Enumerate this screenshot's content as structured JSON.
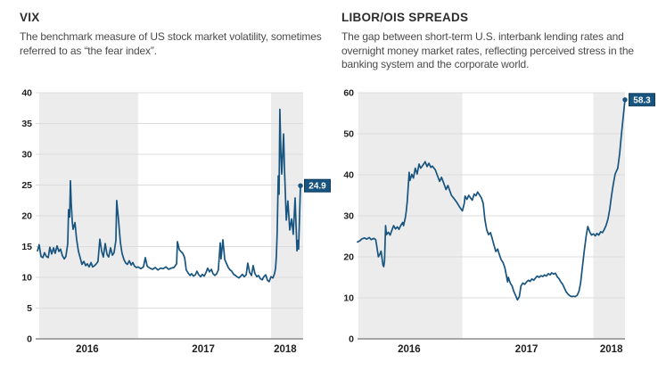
{
  "colors": {
    "line": "#17547F",
    "label_bg": "#17547F",
    "label_border": "#0E3C5C",
    "label_text": "#FFFFFF",
    "band": "#ECECEC",
    "grid": "#DCDCDC",
    "axis": "#8C8C8C",
    "title": "#2D2D2D",
    "description": "#4A4A4A",
    "tick": "#1F1F1F"
  },
  "chart_data": [
    {
      "type": "line",
      "title": "VIX",
      "subtitle": "The benchmark measure of US stock market volatility, sometimes referred to as “the fear index”.",
      "ylim": [
        0,
        40
      ],
      "yticks": [
        0,
        5,
        10,
        15,
        20,
        25,
        30,
        35,
        40
      ],
      "xticks": [
        {
          "label": "2016",
          "pct": 19.3
        },
        {
          "label": "2017",
          "pct": 62.7
        },
        {
          "label": "2018",
          "pct": 93.3
        }
      ],
      "grid": true,
      "legend_position": "none",
      "shaded_bands_pct": [
        [
          1.3,
          38.3
        ],
        [
          88,
          100
        ]
      ],
      "end_label": "24.9",
      "end_value": 24.9,
      "points": [
        [
          0.7,
          14.3
        ],
        [
          1.3,
          15.3
        ],
        [
          2,
          13.4
        ],
        [
          2.7,
          13.2
        ],
        [
          3.3,
          14
        ],
        [
          4,
          13.4
        ],
        [
          4.7,
          13.2
        ],
        [
          5.3,
          14.9
        ],
        [
          6,
          13.8
        ],
        [
          6.7,
          14.8
        ],
        [
          7.3,
          13.9
        ],
        [
          8,
          15.1
        ],
        [
          8.7,
          14.2
        ],
        [
          9.3,
          14.6
        ],
        [
          10,
          13.5
        ],
        [
          10.7,
          13
        ],
        [
          11.3,
          13.4
        ],
        [
          12,
          15.5
        ],
        [
          12.3,
          21
        ],
        [
          12.7,
          19.8
        ],
        [
          13,
          25.7
        ],
        [
          13.3,
          22
        ],
        [
          13.7,
          19
        ],
        [
          14,
          17.8
        ],
        [
          14.7,
          18.9
        ],
        [
          15.3,
          16.2
        ],
        [
          16,
          14.2
        ],
        [
          16.7,
          13.1
        ],
        [
          17.3,
          12.1
        ],
        [
          18,
          12.6
        ],
        [
          18.7,
          11.9
        ],
        [
          19.3,
          12.2
        ],
        [
          20,
          11.7
        ],
        [
          20.7,
          12.4
        ],
        [
          21.3,
          11.7
        ],
        [
          22,
          11.9
        ],
        [
          22.7,
          12.2
        ],
        [
          23.3,
          12.6
        ],
        [
          24,
          16.2
        ],
        [
          24.7,
          14.2
        ],
        [
          25.3,
          13.3
        ],
        [
          26,
          15.5
        ],
        [
          26.7,
          13.7
        ],
        [
          27.3,
          13.3
        ],
        [
          28,
          14.8
        ],
        [
          28.7,
          13.6
        ],
        [
          29.3,
          14
        ],
        [
          30,
          16
        ],
        [
          30.3,
          22.5
        ],
        [
          31,
          19.2
        ],
        [
          31.7,
          15.6
        ],
        [
          32.3,
          13.9
        ],
        [
          33,
          12.9
        ],
        [
          33.7,
          12.3
        ],
        [
          34.3,
          12.1
        ],
        [
          35,
          12.7
        ],
        [
          35.7,
          12
        ],
        [
          36.3,
          12.4
        ],
        [
          37,
          11.8
        ],
        [
          37.7,
          11.6
        ],
        [
          38.3,
          11.7
        ],
        [
          39.3,
          11.4
        ],
        [
          40.3,
          11.7
        ],
        [
          41,
          13.2
        ],
        [
          41.7,
          11.8
        ],
        [
          42.7,
          11.5
        ],
        [
          43.7,
          11.3
        ],
        [
          44.7,
          11.6
        ],
        [
          45.7,
          11.2
        ],
        [
          46.7,
          11.5
        ],
        [
          47.7,
          11.4
        ],
        [
          48.7,
          11.7
        ],
        [
          49.7,
          11.3
        ],
        [
          50.7,
          11.5
        ],
        [
          51.7,
          11.6
        ],
        [
          52.7,
          12.2
        ],
        [
          53,
          15.8
        ],
        [
          53.7,
          14.5
        ],
        [
          54.3,
          14.2
        ],
        [
          55,
          13.9
        ],
        [
          55.7,
          13.2
        ],
        [
          56.3,
          11.2
        ],
        [
          57,
          10.7
        ],
        [
          57.7,
          10.3
        ],
        [
          58.3,
          10.6
        ],
        [
          59,
          10.2
        ],
        [
          59.7,
          10.4
        ],
        [
          60.3,
          11
        ],
        [
          61,
          10.4
        ],
        [
          61.7,
          10.1
        ],
        [
          62.3,
          10.5
        ],
        [
          63,
          10.2
        ],
        [
          63.7,
          10.8
        ],
        [
          64.3,
          11.5
        ],
        [
          65,
          10.9
        ],
        [
          65.7,
          11.3
        ],
        [
          66.3,
          10.6
        ],
        [
          67,
          10.3
        ],
        [
          67.7,
          10.6
        ],
        [
          68.3,
          11.2
        ],
        [
          69,
          15.6
        ],
        [
          69.3,
          13
        ],
        [
          70,
          16.1
        ],
        [
          70.7,
          12.9
        ],
        [
          71.3,
          12.3
        ],
        [
          72,
          11.6
        ],
        [
          72.7,
          11.2
        ],
        [
          73.3,
          11
        ],
        [
          74,
          10.5
        ],
        [
          74.7,
          10.3
        ],
        [
          75.3,
          10.1
        ],
        [
          76,
          9.9
        ],
        [
          76.7,
          10.2
        ],
        [
          77.3,
          10.5
        ],
        [
          78,
          10.1
        ],
        [
          78.7,
          10.4
        ],
        [
          79.3,
          12.3
        ],
        [
          80,
          10.8
        ],
        [
          80.7,
          10.3
        ],
        [
          81.3,
          11.9
        ],
        [
          82,
          10.6
        ],
        [
          82.7,
          10.1
        ],
        [
          83.3,
          10.3
        ],
        [
          84,
          9.8
        ],
        [
          84.7,
          9.6
        ],
        [
          85.3,
          10.1
        ],
        [
          86,
          10.4
        ],
        [
          86.7,
          9.5
        ],
        [
          87.3,
          9.3
        ],
        [
          88,
          10.1
        ],
        [
          88.7,
          9.9
        ],
        [
          89.3,
          10.6
        ],
        [
          89.7,
          11.5
        ],
        [
          90,
          13.5
        ],
        [
          90.3,
          17.3
        ],
        [
          90.7,
          26.5
        ],
        [
          91,
          23.5
        ],
        [
          91.3,
          37.3
        ],
        [
          91.7,
          30
        ],
        [
          92,
          26.8
        ],
        [
          92.7,
          33.3
        ],
        [
          93,
          28
        ],
        [
          93.7,
          19.3
        ],
        [
          94.3,
          22.4
        ],
        [
          95,
          17.7
        ],
        [
          95.7,
          19.5
        ],
        [
          96.3,
          17
        ],
        [
          97,
          22.9
        ],
        [
          97.7,
          14.3
        ],
        [
          98,
          16
        ],
        [
          98.3,
          14.6
        ],
        [
          99,
          24.9
        ]
      ]
    },
    {
      "type": "line",
      "title": "LIBOR/OIS SPREADS",
      "subtitle": "The gap between short-term U.S. interbank lending rates and overnight money market rates, reflecting perceived stress in the banking system and the corporate world.",
      "ylim": [
        0,
        60
      ],
      "yticks": [
        0,
        10,
        20,
        30,
        40,
        50,
        60
      ],
      "xticks": [
        {
          "label": "2016",
          "pct": 19.3
        },
        {
          "label": "2017",
          "pct": 63.2
        },
        {
          "label": "2018",
          "pct": 94.9
        }
      ],
      "grid": true,
      "legend_position": "none",
      "shaded_bands_pct": [
        [
          0.3,
          39.2
        ],
        [
          88.2,
          100
        ]
      ],
      "end_label": "58.3",
      "end_value": 58.3,
      "points": [
        [
          0,
          23.6
        ],
        [
          0.8,
          23.9
        ],
        [
          1.7,
          24.4
        ],
        [
          2.7,
          24.6
        ],
        [
          3.4,
          24.3
        ],
        [
          4.4,
          24.7
        ],
        [
          5.1,
          24.2
        ],
        [
          6.1,
          24.5
        ],
        [
          6.8,
          24.2
        ],
        [
          7.1,
          23
        ],
        [
          7.8,
          20
        ],
        [
          8.4,
          20.7
        ],
        [
          8.8,
          21.4
        ],
        [
          9.1,
          20
        ],
        [
          9.5,
          18
        ],
        [
          9.8,
          17.6
        ],
        [
          10.1,
          19
        ],
        [
          10.5,
          27.6
        ],
        [
          10.8,
          25.4
        ],
        [
          11.5,
          26
        ],
        [
          12.2,
          25.3
        ],
        [
          12.8,
          26.4
        ],
        [
          13.5,
          27.6
        ],
        [
          14.2,
          26.8
        ],
        [
          14.9,
          27.3
        ],
        [
          15.5,
          26.7
        ],
        [
          16.2,
          27.7
        ],
        [
          16.9,
          28.4
        ],
        [
          17.2,
          27.6
        ],
        [
          17.9,
          29.6
        ],
        [
          18.2,
          31
        ],
        [
          18.6,
          33.5
        ],
        [
          18.9,
          36.5
        ],
        [
          19.3,
          40.6
        ],
        [
          19.6,
          38.6
        ],
        [
          20.3,
          40.1
        ],
        [
          20.9,
          39.2
        ],
        [
          21.6,
          41.6
        ],
        [
          22.3,
          40.2
        ],
        [
          23,
          42.6
        ],
        [
          23.6,
          41.6
        ],
        [
          24.3,
          42.2
        ],
        [
          25.3,
          43.2
        ],
        [
          26,
          42
        ],
        [
          26.7,
          42.8
        ],
        [
          27.4,
          41.8
        ],
        [
          28,
          42.1
        ],
        [
          29.1,
          41.2
        ],
        [
          29.7,
          40.1
        ],
        [
          30.7,
          38.4
        ],
        [
          31.4,
          39.4
        ],
        [
          32.1,
          38.2
        ],
        [
          33.1,
          36.4
        ],
        [
          33.8,
          37.4
        ],
        [
          34.5,
          36.1
        ],
        [
          35.1,
          35
        ],
        [
          36.1,
          34.2
        ],
        [
          37.2,
          33.2
        ],
        [
          38.2,
          32.1
        ],
        [
          39.2,
          31.2
        ],
        [
          39.9,
          33
        ],
        [
          40.2,
          34.8
        ],
        [
          40.9,
          34
        ],
        [
          41.6,
          35
        ],
        [
          42.2,
          34.4
        ],
        [
          42.9,
          33.8
        ],
        [
          43.6,
          35.3
        ],
        [
          44.3,
          34.9
        ],
        [
          44.9,
          35.8
        ],
        [
          45.6,
          35.1
        ],
        [
          46.3,
          34.4
        ],
        [
          47,
          33
        ],
        [
          47.6,
          29.2
        ],
        [
          48.3,
          26.6
        ],
        [
          49,
          25.4
        ],
        [
          49.7,
          25.9
        ],
        [
          50.3,
          24.6
        ],
        [
          51,
          22.9
        ],
        [
          51.7,
          21.3
        ],
        [
          52.4,
          21.9
        ],
        [
          53,
          20.6
        ],
        [
          53.7,
          19.3
        ],
        [
          54.4,
          18.6
        ],
        [
          55.1,
          17.3
        ],
        [
          55.7,
          15.3
        ],
        [
          56.1,
          13.9
        ],
        [
          56.4,
          15
        ],
        [
          57.1,
          13.6
        ],
        [
          57.8,
          12.9
        ],
        [
          58.4,
          11.6
        ],
        [
          59.1,
          10.6
        ],
        [
          59.8,
          9.5
        ],
        [
          60.5,
          10.3
        ],
        [
          61.1,
          12.9
        ],
        [
          61.8,
          13.6
        ],
        [
          62.5,
          13.3
        ],
        [
          63.2,
          13.9
        ],
        [
          63.9,
          14.3
        ],
        [
          64.5,
          14
        ],
        [
          65.2,
          14.6
        ],
        [
          65.9,
          14.3
        ],
        [
          66.6,
          14.9
        ],
        [
          67.2,
          15.3
        ],
        [
          67.9,
          15
        ],
        [
          68.6,
          15.4
        ],
        [
          69.3,
          15.2
        ],
        [
          69.9,
          15.6
        ],
        [
          70.6,
          15.3
        ],
        [
          71.3,
          15.9
        ],
        [
          72,
          15.6
        ],
        [
          72.6,
          16.1
        ],
        [
          73.3,
          15.8
        ],
        [
          74,
          16
        ],
        [
          74.7,
          15.1
        ],
        [
          75.3,
          14.7
        ],
        [
          76,
          13.9
        ],
        [
          76.7,
          13.3
        ],
        [
          77.4,
          12.3
        ],
        [
          78,
          11.5
        ],
        [
          78.7,
          10.9
        ],
        [
          79.4,
          10.5
        ],
        [
          80.1,
          10.3
        ],
        [
          80.7,
          10.4
        ],
        [
          81.4,
          10.3
        ],
        [
          82.1,
          10.6
        ],
        [
          82.8,
          11.6
        ],
        [
          83.4,
          13.6
        ],
        [
          84.1,
          17.6
        ],
        [
          84.8,
          21.6
        ],
        [
          85.5,
          25.1
        ],
        [
          86.1,
          27.4
        ],
        [
          86.8,
          26.1
        ],
        [
          87.5,
          25.3
        ],
        [
          88.2,
          25.6
        ],
        [
          88.9,
          25.1
        ],
        [
          89.5,
          25.7
        ],
        [
          90.2,
          25.3
        ],
        [
          90.9,
          26.1
        ],
        [
          91.6,
          25.9
        ],
        [
          92.2,
          26.6
        ],
        [
          92.9,
          27.6
        ],
        [
          93.6,
          29.1
        ],
        [
          94.3,
          31.6
        ],
        [
          94.9,
          34.6
        ],
        [
          95.6,
          37.6
        ],
        [
          96.3,
          40.1
        ],
        [
          96.6,
          40.6
        ],
        [
          97.3,
          41.6
        ],
        [
          98,
          45.1
        ],
        [
          98.6,
          49.4
        ],
        [
          99.3,
          53.9
        ],
        [
          100,
          58.3
        ]
      ]
    }
  ]
}
